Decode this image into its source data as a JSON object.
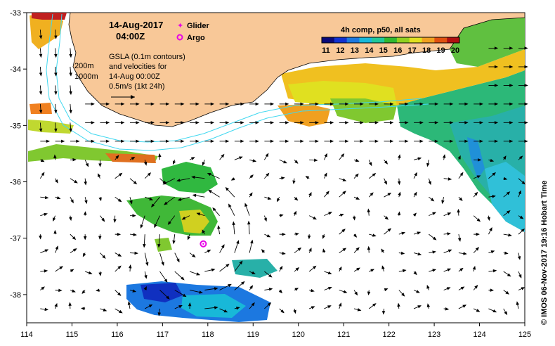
{
  "map": {
    "date_line": "14-Aug-2017",
    "time_line": "04:00Z",
    "legend": {
      "glider_label": "Glider",
      "argo_label": "Argo",
      "glider_color": "#e600e6",
      "argo_color": "#e600e6"
    },
    "depth_labels": [
      "200m",
      "1000m"
    ],
    "gsla_note": [
      "GSLA (0.1m contours)",
      "and velocities for",
      "14-Aug 00:00Z",
      "0.5m/s (1kt 24h)"
    ],
    "colorbar": {
      "title": "4h comp, p50, all sats",
      "ticks": [
        "11",
        "12",
        "13",
        "14",
        "15",
        "16",
        "17",
        "18",
        "19",
        "20"
      ],
      "colors": [
        "#0a0a7a",
        "#1030d0",
        "#1c78e0",
        "#18b8d8",
        "#20c89a",
        "#30b830",
        "#90d020",
        "#e0e020",
        "#f0a020",
        "#e05010",
        "#b01010"
      ]
    },
    "credit": "© IMOS 06-Nov-2017 19:16 Hobart Time",
    "x_ticks": [
      "114",
      "115",
      "116",
      "117",
      "118",
      "119",
      "120",
      "121",
      "122",
      "123",
      "124",
      "125"
    ],
    "y_ticks": [
      "-33",
      "-34",
      "-35",
      "-36",
      "-37",
      "-38"
    ],
    "x_range": [
      114,
      125
    ],
    "y_range": [
      -38.5,
      -33
    ],
    "argo_position": {
      "lon": 117.9,
      "lat": -37.1
    },
    "land_color": "#f8c898",
    "isobath_color": "#40d8f0"
  }
}
